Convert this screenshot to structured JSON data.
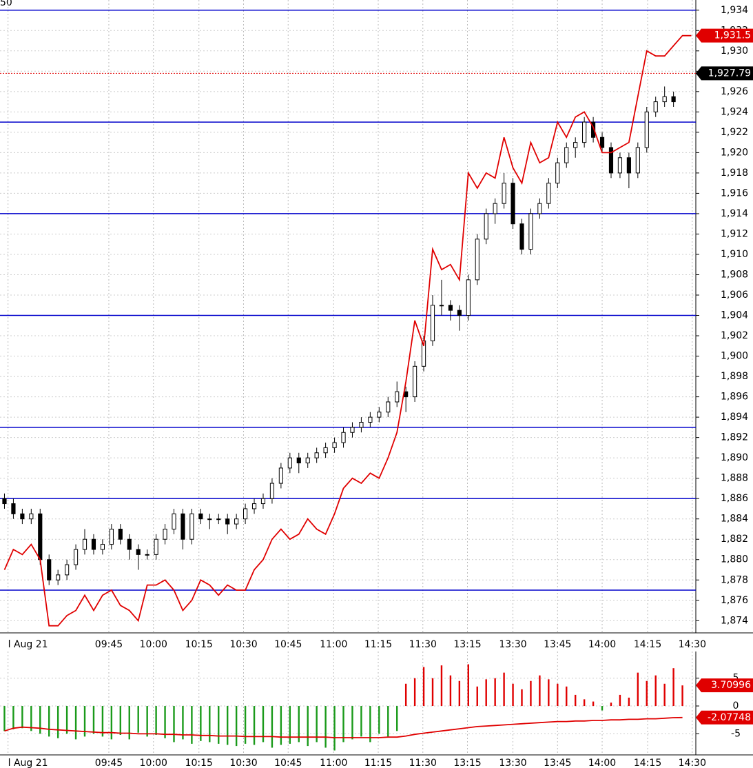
{
  "chart_data": [
    {
      "type": "candlestick",
      "corner_label": "50",
      "xlim": [
        0,
        78
      ],
      "xticks": [
        {
          "value": 0.9,
          "label": "l Aug 21"
        },
        {
          "value": 12.2,
          "label": "09:45"
        },
        {
          "value": 17.2,
          "label": "10:00"
        },
        {
          "value": 22.3,
          "label": "10:15"
        },
        {
          "value": 27.3,
          "label": "10:30"
        },
        {
          "value": 32.3,
          "label": "10:45"
        },
        {
          "value": 37.4,
          "label": "11:00"
        },
        {
          "value": 42.4,
          "label": "11:15"
        },
        {
          "value": 47.4,
          "label": "11:30"
        },
        {
          "value": 52.4,
          "label": "13:15"
        },
        {
          "value": 57.5,
          "label": "13:30"
        },
        {
          "value": 62.5,
          "label": "13:45"
        },
        {
          "value": 67.5,
          "label": "14:00"
        },
        {
          "value": 72.6,
          "label": "14:15"
        },
        {
          "value": 77.6,
          "label": "14:30"
        }
      ],
      "ylim": [
        1872.8,
        1935
      ],
      "yticks": [
        {
          "value": 1874,
          "label": "1,874"
        },
        {
          "value": 1876,
          "label": "1,876"
        },
        {
          "value": 1878,
          "label": "1,878"
        },
        {
          "value": 1880,
          "label": "1,880"
        },
        {
          "value": 1882,
          "label": "1,882"
        },
        {
          "value": 1884,
          "label": "1,884"
        },
        {
          "value": 1886,
          "label": "1,886"
        },
        {
          "value": 1888,
          "label": "1,888"
        },
        {
          "value": 1890,
          "label": "1,890"
        },
        {
          "value": 1892,
          "label": "1,892"
        },
        {
          "value": 1894,
          "label": "1,894"
        },
        {
          "value": 1896,
          "label": "1,896"
        },
        {
          "value": 1898,
          "label": "1,898"
        },
        {
          "value": 1900,
          "label": "1,900"
        },
        {
          "value": 1902,
          "label": "1,902"
        },
        {
          "value": 1904,
          "label": "1,904"
        },
        {
          "value": 1906,
          "label": "1,906"
        },
        {
          "value": 1908,
          "label": "1,908"
        },
        {
          "value": 1910,
          "label": "1,910"
        },
        {
          "value": 1912,
          "label": "1,912"
        },
        {
          "value": 1914,
          "label": "1,914"
        },
        {
          "value": 1916,
          "label": "1,916"
        },
        {
          "value": 1918,
          "label": "1,918"
        },
        {
          "value": 1920,
          "label": "1,920"
        },
        {
          "value": 1922,
          "label": "1,922"
        },
        {
          "value": 1924,
          "label": "1,924"
        },
        {
          "value": 1926,
          "label": "1,926"
        },
        {
          "value": 1928,
          "label": "1,928"
        },
        {
          "value": 1930,
          "label": "1,930"
        },
        {
          "value": 1932,
          "label": "1,932"
        },
        {
          "value": 1934,
          "label": "1,934"
        }
      ],
      "grid": true,
      "candles": {
        "open": [
          1886,
          1885.5,
          1884.5,
          1884,
          1884.5,
          1880,
          1878,
          1878.5,
          1879.5,
          1881,
          1882,
          1881,
          1881.5,
          1883,
          1882,
          1881,
          1880.5,
          1880.5,
          1882,
          1883,
          1884.5,
          1882,
          1884.5,
          1884,
          1884,
          1884,
          1883.5,
          1884,
          1885,
          1885.5,
          1886,
          1887.5,
          1889,
          1890,
          1889.5,
          1890,
          1890.5,
          1891,
          1891.5,
          1892.5,
          1893,
          1893.5,
          1894,
          1894.5,
          1895.5,
          1896.5,
          1896,
          1899,
          1901.5,
          1905,
          1905,
          1904.5,
          1904,
          1907.5,
          1911.5,
          1914,
          1915,
          1917,
          1913,
          1910.5,
          1914,
          1915,
          1917,
          1919,
          1920.5,
          1921,
          1923,
          1921.5,
          1920.5,
          1918,
          1919.5,
          1918,
          1920.5,
          1924,
          1925,
          1925.5
        ],
        "high": [
          1886.5,
          1886,
          1885,
          1885,
          1885,
          1880.5,
          1879,
          1880,
          1881.5,
          1883,
          1882.5,
          1882,
          1883.5,
          1883.5,
          1882.5,
          1881.5,
          1881,
          1882.5,
          1883.5,
          1885,
          1885,
          1885,
          1885,
          1884.5,
          1884.5,
          1884.5,
          1884.5,
          1885.5,
          1886,
          1886.5,
          1888,
          1889.5,
          1890.5,
          1890.5,
          1890.5,
          1891,
          1891.5,
          1892,
          1893,
          1893.5,
          1894,
          1894.5,
          1895,
          1896,
          1897.5,
          1897,
          1899.5,
          1902,
          1906,
          1907.5,
          1905.5,
          1905,
          1908,
          1912,
          1914.5,
          1915.5,
          1918,
          1917.5,
          1913.5,
          1914.5,
          1915.5,
          1917.5,
          1919.5,
          1921,
          1921.5,
          1923.5,
          1923.5,
          1922,
          1921,
          1920,
          1920,
          1921,
          1924.5,
          1925.5,
          1926.5,
          1926
        ],
        "low": [
          1885,
          1884,
          1883.5,
          1883.5,
          1879.5,
          1877.5,
          1877.5,
          1878,
          1879,
          1880.5,
          1880.5,
          1880.5,
          1881,
          1881.5,
          1880,
          1879,
          1880,
          1880,
          1881.5,
          1882.5,
          1881,
          1881.5,
          1883.5,
          1883,
          1883.5,
          1882.5,
          1883,
          1883.5,
          1884.5,
          1885,
          1885.5,
          1887,
          1888.5,
          1888.5,
          1889,
          1889.5,
          1890,
          1890.5,
          1891,
          1892,
          1892.5,
          1893,
          1893.5,
          1894,
          1895,
          1894.5,
          1895.5,
          1898.5,
          1901,
          1904,
          1903.5,
          1902.5,
          1903.5,
          1907,
          1911,
          1913,
          1914.5,
          1912.5,
          1910,
          1910,
          1913.5,
          1914.5,
          1916.5,
          1918.5,
          1919.5,
          1920.5,
          1921,
          1920,
          1917.5,
          1917.5,
          1916.5,
          1917.5,
          1920,
          1923.5,
          1924.5,
          1924.5
        ],
        "close": [
          1885.5,
          1884.5,
          1884,
          1884.5,
          1880,
          1878,
          1878.5,
          1879.5,
          1881,
          1882,
          1881,
          1881.5,
          1883,
          1882,
          1881,
          1880.5,
          1880.5,
          1882,
          1883,
          1884.5,
          1882,
          1884.5,
          1884,
          1884,
          1884,
          1883.5,
          1884,
          1885,
          1885.5,
          1886,
          1887.5,
          1889,
          1890,
          1889.5,
          1890,
          1890.5,
          1891,
          1891.5,
          1892.5,
          1893,
          1893.5,
          1894,
          1894.5,
          1895.5,
          1896.5,
          1896,
          1899,
          1901.5,
          1905,
          1905,
          1904.5,
          1904,
          1907.5,
          1911.5,
          1914,
          1915,
          1917,
          1913,
          1910.5,
          1914,
          1915,
          1917,
          1919,
          1920.5,
          1921,
          1923,
          1921.5,
          1920.5,
          1918,
          1919.5,
          1918,
          1920.5,
          1924,
          1925,
          1925.5,
          1925
        ],
        "up_color": "#ffffff",
        "down_color": "#000000",
        "edge_color": "#000000"
      },
      "line": {
        "color": "#e00000",
        "values": [
          1879,
          1881,
          1880.5,
          1881.5,
          1880,
          1873.5,
          1873.5,
          1874.5,
          1875,
          1876.5,
          1875,
          1876.5,
          1877,
          1875.5,
          1875,
          1874,
          1877.5,
          1877.5,
          1878,
          1877,
          1875,
          1876,
          1878,
          1877.5,
          1876.5,
          1877.5,
          1877,
          1877,
          1879,
          1880,
          1882,
          1883,
          1882,
          1882.5,
          1884,
          1883,
          1882.5,
          1884.5,
          1887,
          1888,
          1887.5,
          1888.5,
          1888,
          1890,
          1892.5,
          1897.5,
          1903.5,
          1901,
          1910.5,
          1908.5,
          1909,
          1907.5,
          1918,
          1916.5,
          1918,
          1917.5,
          1921.5,
          1918.5,
          1917,
          1921,
          1919,
          1919.5,
          1923,
          1921.5,
          1923.5,
          1924,
          1922.5,
          1920,
          1920,
          1920.5,
          1921,
          1925.5,
          1930,
          1929.5,
          1929.5,
          1930.5,
          1931.5,
          1931.5
        ]
      },
      "hlines": {
        "color": "#0000cc",
        "values": [
          1934,
          1923,
          1914,
          1904,
          1893,
          1886,
          1877
        ]
      },
      "price_line": {
        "value": 1927.79,
        "color": "#e00000"
      },
      "tags": [
        {
          "value": 1931.5,
          "label": "1,931.5",
          "color": "#e00000"
        },
        {
          "value": 1927.79,
          "label": "1,927.79",
          "color": "#000000"
        }
      ]
    },
    {
      "type": "bar",
      "xlim": [
        0,
        78
      ],
      "xticks": [
        {
          "value": 0.9,
          "label": "l Aug 21"
        },
        {
          "value": 12.2,
          "label": "09:45"
        },
        {
          "value": 17.2,
          "label": "10:00"
        },
        {
          "value": 22.3,
          "label": "10:15"
        },
        {
          "value": 27.3,
          "label": "10:30"
        },
        {
          "value": 32.3,
          "label": "10:45"
        },
        {
          "value": 37.4,
          "label": "11:00"
        },
        {
          "value": 42.4,
          "label": "11:15"
        },
        {
          "value": 47.4,
          "label": "11:30"
        },
        {
          "value": 52.4,
          "label": "13:15"
        },
        {
          "value": 57.5,
          "label": "13:30"
        },
        {
          "value": 62.5,
          "label": "13:45"
        },
        {
          "value": 67.5,
          "label": "14:00"
        },
        {
          "value": 72.6,
          "label": "14:15"
        },
        {
          "value": 77.6,
          "label": "14:30"
        }
      ],
      "ylim": [
        -8.8,
        9.8
      ],
      "yticks": [
        5,
        0,
        -5
      ],
      "grid": true,
      "values": [
        -4.5,
        -4.2,
        -4,
        -4.5,
        -5,
        -5.5,
        -5.8,
        -5,
        -6,
        -5.5,
        -5,
        -5.5,
        -6,
        -5.2,
        -6,
        -4.8,
        -5.5,
        -5.2,
        -5.8,
        -6.5,
        -6,
        -6.8,
        -6.3,
        -6.5,
        -6.8,
        -7,
        -7.2,
        -6.8,
        -7,
        -6.5,
        -7.5,
        -7,
        -6.8,
        -6.5,
        -7.2,
        -6.5,
        -7.5,
        -8,
        -6.5,
        -6,
        -5.5,
        -6.5,
        -5,
        -5.5,
        -4.5,
        4,
        5,
        7,
        5,
        7.3,
        5.5,
        4.5,
        7.5,
        3.5,
        4.8,
        5,
        6,
        4,
        3,
        4.5,
        5.5,
        4.8,
        4,
        3.5,
        2,
        1.2,
        0.8,
        -0.8,
        0.6,
        2,
        1.5,
        6,
        4.5,
        5.5,
        4,
        6.8,
        3.7
      ],
      "positive_color": "#e00000",
      "negative_color": "#1a9a1a",
      "line": {
        "color": "#e00000",
        "values": [
          -4.5,
          -4,
          -3.8,
          -3.9,
          -4,
          -4.2,
          -4.3,
          -4.4,
          -4.5,
          -4.6,
          -4.7,
          -4.8,
          -4.8,
          -4.9,
          -4.9,
          -5,
          -5,
          -5,
          -5.1,
          -5.1,
          -5.2,
          -5.2,
          -5.3,
          -5.3,
          -5.4,
          -5.4,
          -5.4,
          -5.5,
          -5.5,
          -5.5,
          -5.5,
          -5.6,
          -5.6,
          -5.6,
          -5.6,
          -5.6,
          -5.6,
          -5.7,
          -5.7,
          -5.7,
          -5.7,
          -5.7,
          -5.7,
          -5.6,
          -5.6,
          -5.4,
          -5.1,
          -4.9,
          -4.7,
          -4.5,
          -4.3,
          -4.1,
          -3.9,
          -3.7,
          -3.6,
          -3.5,
          -3.4,
          -3.3,
          -3.2,
          -3.1,
          -3,
          -2.9,
          -2.8,
          -2.8,
          -2.7,
          -2.7,
          -2.6,
          -2.6,
          -2.5,
          -2.5,
          -2.4,
          -2.4,
          -2.3,
          -2.3,
          -2.2,
          -2.1,
          -2.08
        ]
      },
      "tags": [
        {
          "value": 3.70996,
          "color": "#e00000"
        },
        {
          "value": -2.07748,
          "color": "#e00000"
        }
      ]
    }
  ]
}
